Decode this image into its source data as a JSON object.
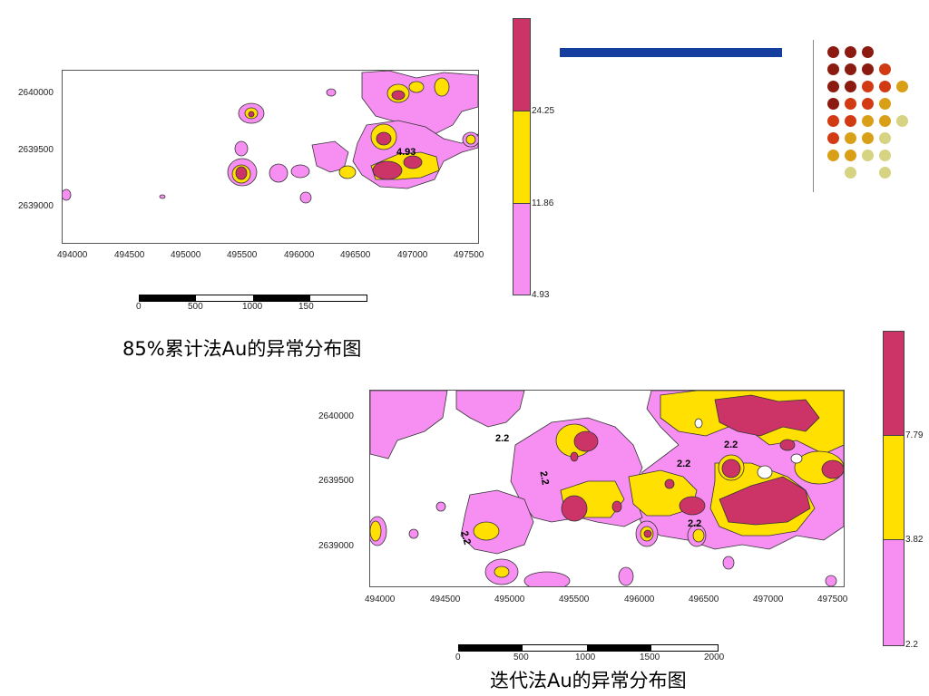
{
  "colors": {
    "low": "#f78ff3",
    "mid": "#ffe000",
    "high": "#cc3366",
    "header_bar": "#153e9e",
    "divider": "#888888"
  },
  "map1": {
    "y_ticks": [
      "2640000",
      "2639500",
      "2639000"
    ],
    "x_ticks": [
      "494000",
      "494500",
      "495000",
      "495500",
      "496000",
      "496500",
      "497000",
      "497500"
    ],
    "contour_label": "4.93",
    "scale_labels": [
      "0",
      "500",
      "1000",
      "150"
    ],
    "legend": {
      "labels": [
        "24.25",
        "11.86",
        "4.93"
      ]
    },
    "caption": "85%累计法Au的异常分布图"
  },
  "map2": {
    "y_ticks": [
      "2640000",
      "2639500",
      "2639000"
    ],
    "x_ticks": [
      "494000",
      "494500",
      "495000",
      "495500",
      "496000",
      "496500",
      "497000",
      "497500"
    ],
    "contour_labels": [
      "2.2",
      "2.2",
      "2.2",
      "2.2",
      "2.2",
      "2.2"
    ],
    "scale_labels": [
      "0",
      "500",
      "1000",
      "1500",
      "2000"
    ],
    "legend": {
      "labels": [
        "7.79",
        "3.82",
        "2.2"
      ]
    },
    "caption": "迭代法Au的异常分布图"
  },
  "decor": {
    "dot_grid_colors": [
      [
        "#8b1a10",
        "#8b1a10",
        "#8b1a10",
        "",
        ""
      ],
      [
        "#8b1a10",
        "#8b1a10",
        "#8b1a10",
        "#d13a12",
        ""
      ],
      [
        "#8b1a10",
        "#8b1a10",
        "#d13a12",
        "#d13a12",
        "#d9a017"
      ],
      [
        "#8b1a10",
        "#d13a12",
        "#d13a12",
        "#d9a017",
        ""
      ],
      [
        "#d13a12",
        "#d13a12",
        "#d9a017",
        "#d9a017",
        "#d6d383"
      ],
      [
        "#d13a12",
        "#d9a017",
        "#d9a017",
        "#d6d383",
        ""
      ],
      [
        "#d9a017",
        "#d9a017",
        "#d6d383",
        "#d6d383",
        ""
      ],
      [
        "",
        "#d6d383",
        "",
        "#d6d383",
        ""
      ]
    ]
  }
}
